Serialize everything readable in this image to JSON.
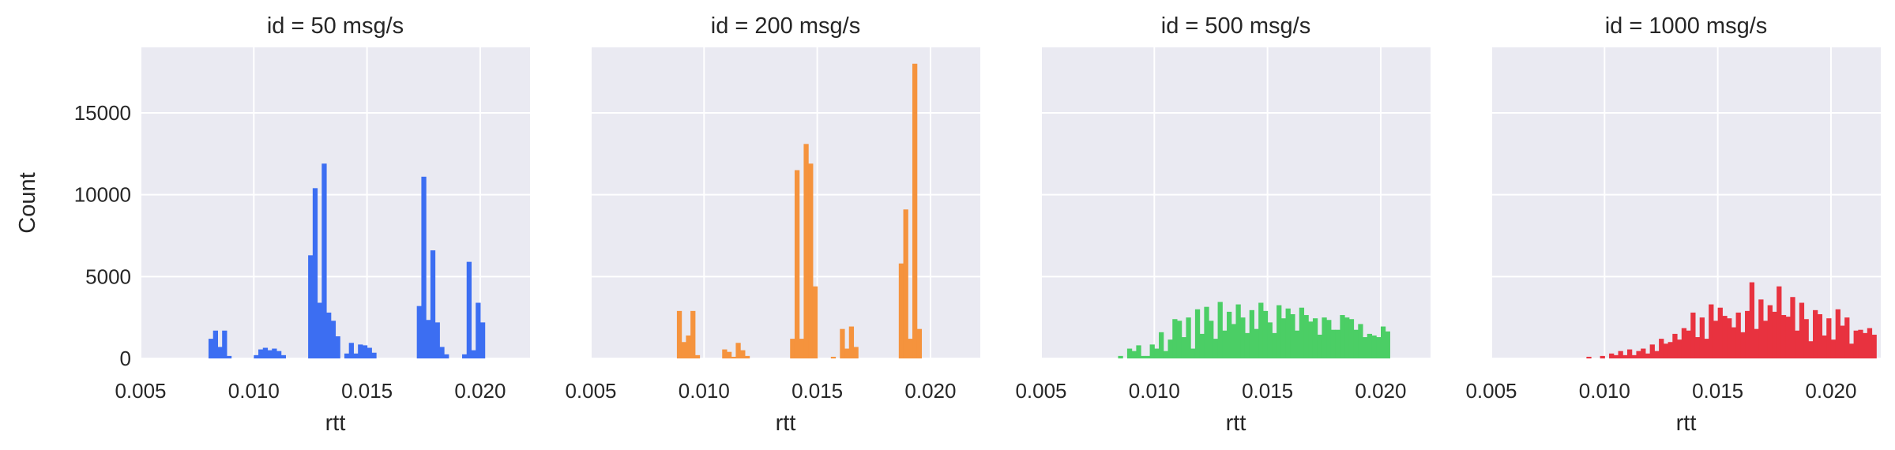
{
  "chart_data": {
    "type": "bar",
    "subtype": "faceted-histogram",
    "ylabel": "Count",
    "ylim": [
      0,
      19000
    ],
    "yticks": [
      0,
      5000,
      10000,
      15000
    ],
    "ytick_labels": [
      "0",
      "5000",
      "10000",
      "15000"
    ],
    "grid": true,
    "shared_y": true,
    "panels": [
      {
        "title": "id = 50 msg/s",
        "xlabel": "rtt",
        "xlim": [
          0.005,
          0.0222
        ],
        "xticks": [
          0.005,
          0.01,
          0.015,
          0.02
        ],
        "xtick_labels": [
          "0.005",
          "0.010",
          "0.015",
          "0.020"
        ],
        "color": "#3c6ef2",
        "bin_width": 0.00024,
        "bins": [
          [
            0.008,
            1200
          ],
          [
            0.0082,
            1700
          ],
          [
            0.0084,
            700
          ],
          [
            0.0086,
            1700
          ],
          [
            0.0088,
            150
          ],
          [
            0.01,
            200
          ],
          [
            0.0102,
            550
          ],
          [
            0.0104,
            650
          ],
          [
            0.0106,
            500
          ],
          [
            0.0108,
            600
          ],
          [
            0.011,
            450
          ],
          [
            0.0112,
            200
          ],
          [
            0.0124,
            6300
          ],
          [
            0.0126,
            10400
          ],
          [
            0.0128,
            3400
          ],
          [
            0.013,
            11900
          ],
          [
            0.0132,
            2800
          ],
          [
            0.0134,
            2300
          ],
          [
            0.0136,
            1350
          ],
          [
            0.014,
            300
          ],
          [
            0.0142,
            950
          ],
          [
            0.0144,
            300
          ],
          [
            0.0146,
            850
          ],
          [
            0.0148,
            800
          ],
          [
            0.015,
            650
          ],
          [
            0.0152,
            350
          ],
          [
            0.0172,
            3200
          ],
          [
            0.0174,
            11100
          ],
          [
            0.0176,
            2350
          ],
          [
            0.0178,
            6600
          ],
          [
            0.018,
            2200
          ],
          [
            0.0182,
            700
          ],
          [
            0.0184,
            250
          ],
          [
            0.0192,
            250
          ],
          [
            0.0194,
            5900
          ],
          [
            0.0196,
            500
          ],
          [
            0.0198,
            3400
          ],
          [
            0.02,
            2200
          ]
        ]
      },
      {
        "title": "id = 200 msg/s",
        "xlabel": "rtt",
        "xlim": [
          0.005,
          0.0222
        ],
        "xticks": [
          0.005,
          0.01,
          0.015,
          0.02
        ],
        "xtick_labels": [
          "0.005",
          "0.010",
          "0.015",
          "0.020"
        ],
        "color": "#f5933d",
        "bin_width": 0.00024,
        "bins": [
          [
            0.0088,
            2900
          ],
          [
            0.009,
            1000
          ],
          [
            0.0092,
            1400
          ],
          [
            0.0094,
            2900
          ],
          [
            0.0096,
            200
          ],
          [
            0.0108,
            550
          ],
          [
            0.011,
            400
          ],
          [
            0.0112,
            100
          ],
          [
            0.0114,
            950
          ],
          [
            0.0116,
            500
          ],
          [
            0.0118,
            150
          ],
          [
            0.0138,
            1200
          ],
          [
            0.014,
            11500
          ],
          [
            0.0142,
            1200
          ],
          [
            0.0144,
            13100
          ],
          [
            0.0146,
            11900
          ],
          [
            0.0148,
            4400
          ],
          [
            0.0156,
            100
          ],
          [
            0.016,
            1800
          ],
          [
            0.0162,
            600
          ],
          [
            0.0164,
            1950
          ],
          [
            0.0166,
            700
          ],
          [
            0.0186,
            5800
          ],
          [
            0.0188,
            9100
          ],
          [
            0.019,
            1200
          ],
          [
            0.0192,
            18000
          ],
          [
            0.0194,
            1800
          ]
        ]
      },
      {
        "title": "id = 500 msg/s",
        "xlabel": "rtt",
        "xlim": [
          0.005,
          0.0222
        ],
        "xticks": [
          0.005,
          0.01,
          0.015,
          0.02
        ],
        "xtick_labels": [
          "0.005",
          "0.010",
          "0.015",
          "0.020"
        ],
        "color": "#4bce65",
        "bin_width": 0.00024,
        "bins": [
          [
            0.0084,
            150
          ],
          [
            0.0088,
            600
          ],
          [
            0.009,
            450
          ],
          [
            0.0092,
            800
          ],
          [
            0.0094,
            150
          ],
          [
            0.0096,
            150
          ],
          [
            0.0098,
            850
          ],
          [
            0.01,
            600
          ],
          [
            0.0102,
            1600
          ],
          [
            0.0104,
            450
          ],
          [
            0.0106,
            1150
          ],
          [
            0.0108,
            2400
          ],
          [
            0.011,
            2300
          ],
          [
            0.0112,
            1300
          ],
          [
            0.0114,
            2500
          ],
          [
            0.0116,
            600
          ],
          [
            0.0118,
            3000
          ],
          [
            0.012,
            1500
          ],
          [
            0.0122,
            3150
          ],
          [
            0.0124,
            2300
          ],
          [
            0.0126,
            1200
          ],
          [
            0.0128,
            3450
          ],
          [
            0.013,
            1700
          ],
          [
            0.0132,
            2850
          ],
          [
            0.0134,
            2100
          ],
          [
            0.0136,
            3300
          ],
          [
            0.0138,
            2500
          ],
          [
            0.014,
            1550
          ],
          [
            0.0142,
            2950
          ],
          [
            0.0144,
            1800
          ],
          [
            0.0146,
            3400
          ],
          [
            0.0148,
            2900
          ],
          [
            0.015,
            2200
          ],
          [
            0.0152,
            1550
          ],
          [
            0.0154,
            3250
          ],
          [
            0.0156,
            2450
          ],
          [
            0.0158,
            3050
          ],
          [
            0.016,
            2700
          ],
          [
            0.0162,
            1700
          ],
          [
            0.0164,
            3100
          ],
          [
            0.0166,
            2650
          ],
          [
            0.0168,
            2250
          ],
          [
            0.017,
            2450
          ],
          [
            0.0172,
            1450
          ],
          [
            0.0174,
            2500
          ],
          [
            0.0176,
            2350
          ],
          [
            0.0178,
            1750
          ],
          [
            0.018,
            1750
          ],
          [
            0.0182,
            2650
          ],
          [
            0.0184,
            2500
          ],
          [
            0.0186,
            2400
          ],
          [
            0.0188,
            1750
          ],
          [
            0.019,
            2100
          ],
          [
            0.0192,
            1300
          ],
          [
            0.0194,
            1500
          ],
          [
            0.0196,
            1400
          ],
          [
            0.0198,
            1300
          ],
          [
            0.02,
            1950
          ],
          [
            0.0202,
            1650
          ]
        ]
      },
      {
        "title": "id = 1000 msg/s",
        "xlabel": "rtt",
        "xlim": [
          0.005,
          0.0222
        ],
        "xticks": [
          0.005,
          0.01,
          0.015,
          0.02
        ],
        "xtick_labels": [
          "0.005",
          "0.010",
          "0.015",
          "0.020"
        ],
        "color": "#e8323f",
        "bin_width": 0.00024,
        "bins": [
          [
            0.0092,
            100
          ],
          [
            0.0098,
            150
          ],
          [
            0.0102,
            300
          ],
          [
            0.0104,
            200
          ],
          [
            0.0106,
            450
          ],
          [
            0.0108,
            200
          ],
          [
            0.011,
            550
          ],
          [
            0.0112,
            200
          ],
          [
            0.0114,
            450
          ],
          [
            0.0116,
            600
          ],
          [
            0.0118,
            300
          ],
          [
            0.012,
            850
          ],
          [
            0.0122,
            450
          ],
          [
            0.0124,
            1200
          ],
          [
            0.0126,
            900
          ],
          [
            0.0128,
            1000
          ],
          [
            0.013,
            1500
          ],
          [
            0.0132,
            1150
          ],
          [
            0.0134,
            1850
          ],
          [
            0.0136,
            1700
          ],
          [
            0.0138,
            2800
          ],
          [
            0.014,
            1300
          ],
          [
            0.0142,
            2500
          ],
          [
            0.0144,
            1200
          ],
          [
            0.0146,
            3300
          ],
          [
            0.0148,
            2300
          ],
          [
            0.015,
            3100
          ],
          [
            0.0152,
            2600
          ],
          [
            0.0154,
            2450
          ],
          [
            0.0156,
            1900
          ],
          [
            0.0158,
            2800
          ],
          [
            0.016,
            1600
          ],
          [
            0.0162,
            2900
          ],
          [
            0.0164,
            4650
          ],
          [
            0.0166,
            1800
          ],
          [
            0.0168,
            3600
          ],
          [
            0.017,
            2300
          ],
          [
            0.0172,
            3250
          ],
          [
            0.0174,
            2850
          ],
          [
            0.0176,
            4400
          ],
          [
            0.0178,
            2650
          ],
          [
            0.018,
            2550
          ],
          [
            0.0182,
            3750
          ],
          [
            0.0184,
            1700
          ],
          [
            0.0186,
            3400
          ],
          [
            0.0188,
            2400
          ],
          [
            0.019,
            1050
          ],
          [
            0.0192,
            2950
          ],
          [
            0.0194,
            2700
          ],
          [
            0.0196,
            1400
          ],
          [
            0.0198,
            2450
          ],
          [
            0.02,
            1150
          ],
          [
            0.0202,
            3000
          ],
          [
            0.0204,
            2000
          ],
          [
            0.0206,
            2500
          ],
          [
            0.0208,
            900
          ],
          [
            0.021,
            1700
          ],
          [
            0.0212,
            1750
          ],
          [
            0.0214,
            1550
          ],
          [
            0.0216,
            1850
          ],
          [
            0.0218,
            1450
          ]
        ]
      }
    ]
  }
}
